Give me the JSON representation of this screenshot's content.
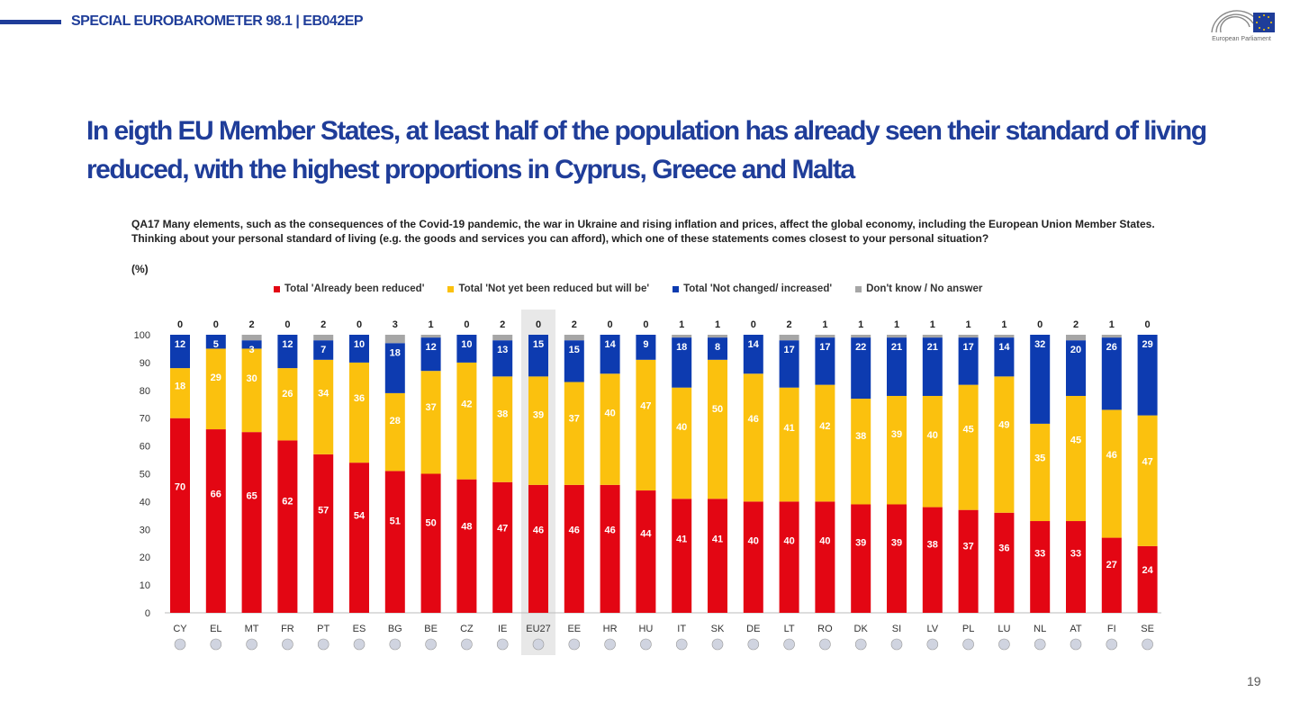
{
  "header": {
    "title": "SPECIAL EUROBAROMETER 98.1 | EB042EP",
    "logo_label": "European Parliament"
  },
  "slide": {
    "title": "In eigth EU Member States, at least half of the population has already seen their standard of living reduced, with the highest proportions in Cyprus, Greece and Malta",
    "question": "QA17  Many elements, such as the consequences of the Covid-19 pandemic, the war in Ukraine and rising inflation and prices, affect the global economy, including the European Union Member States. Thinking about your personal standard of living (e.g. the goods and services you can afford), which one of these statements comes closest to your personal situation?",
    "unit": "(%)",
    "page_number": "19"
  },
  "colors": {
    "reduced": "#e30613",
    "will_be": "#fbc10e",
    "not_changed": "#0d3bb0",
    "dont_know": "#a6a6a6",
    "highlight": "#e8e8e8"
  },
  "chart_data": {
    "type": "bar",
    "stacked": true,
    "categories": [
      "CY",
      "EL",
      "MT",
      "FR",
      "PT",
      "ES",
      "BG",
      "BE",
      "CZ",
      "IE",
      "EU27",
      "EE",
      "HR",
      "HU",
      "IT",
      "SK",
      "DE",
      "LT",
      "RO",
      "DK",
      "SI",
      "LV",
      "PL",
      "LU",
      "NL",
      "AT",
      "FI",
      "SE"
    ],
    "highlight_category": "EU27",
    "series": [
      {
        "name": "Total 'Already been reduced'",
        "color": "#e30613",
        "values": [
          70,
          66,
          65,
          62,
          57,
          54,
          51,
          50,
          48,
          47,
          46,
          46,
          46,
          44,
          41,
          41,
          40,
          40,
          40,
          39,
          39,
          38,
          37,
          36,
          33,
          33,
          27,
          24
        ]
      },
      {
        "name": "Total 'Not yet been reduced but will be'",
        "color": "#fbc10e",
        "values": [
          18,
          29,
          30,
          26,
          34,
          36,
          28,
          37,
          42,
          38,
          39,
          37,
          40,
          47,
          40,
          50,
          46,
          41,
          42,
          38,
          39,
          40,
          45,
          49,
          35,
          45,
          46,
          47
        ]
      },
      {
        "name": "Total 'Not changed/ increased'",
        "color": "#0d3bb0",
        "values": [
          12,
          5,
          3,
          12,
          7,
          10,
          18,
          12,
          10,
          13,
          15,
          15,
          14,
          9,
          18,
          8,
          14,
          17,
          17,
          22,
          21,
          21,
          17,
          14,
          32,
          20,
          26,
          29
        ]
      },
      {
        "name": "Don't know / No answer",
        "color": "#a6a6a6",
        "values": [
          0,
          0,
          2,
          0,
          2,
          0,
          3,
          1,
          0,
          2,
          0,
          2,
          0,
          0,
          1,
          1,
          0,
          2,
          1,
          1,
          1,
          1,
          1,
          1,
          0,
          2,
          1,
          0
        ]
      }
    ],
    "y_ticks": [
      0,
      10,
      20,
      30,
      40,
      50,
      60,
      70,
      80,
      90,
      100
    ],
    "ylim": [
      0,
      100
    ],
    "legend_position": "top",
    "grid": false,
    "flags": [
      "cyprus-flag",
      "greece-flag",
      "malta-flag",
      "france-flag",
      "portugal-flag",
      "spain-flag",
      "bulgaria-flag",
      "belgium-flag",
      "czechia-flag",
      "ireland-flag",
      "eu-flag",
      "estonia-flag",
      "croatia-flag",
      "hungary-flag",
      "italy-flag",
      "slovakia-flag",
      "germany-flag",
      "lithuania-flag",
      "romania-flag",
      "denmark-flag",
      "slovenia-flag",
      "latvia-flag",
      "poland-flag",
      "luxembourg-flag",
      "netherlands-flag",
      "austria-flag",
      "finland-flag",
      "sweden-flag"
    ]
  }
}
